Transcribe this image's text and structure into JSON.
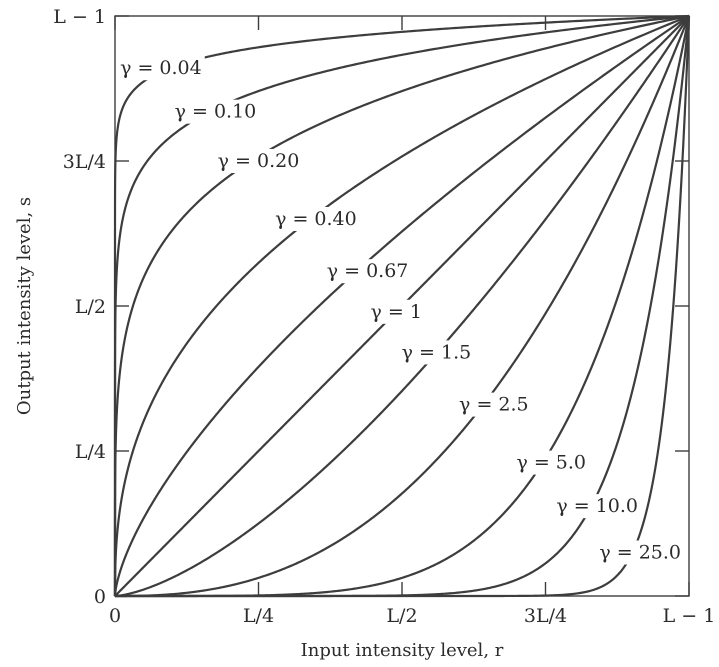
{
  "chart_data": {
    "type": "line",
    "title": "",
    "xlabel": "Input intensity level, r",
    "ylabel": "Output intensity level, s",
    "xlim": [
      0,
      1
    ],
    "ylim": [
      0,
      1
    ],
    "x_ticks": [
      {
        "value": 0,
        "label": "0"
      },
      {
        "value": 0.25,
        "label": "L/4"
      },
      {
        "value": 0.5,
        "label": "L/2"
      },
      {
        "value": 0.75,
        "label": "3L/4"
      },
      {
        "value": 1,
        "label": "L − 1"
      }
    ],
    "y_ticks": [
      {
        "value": 0,
        "label": "0"
      },
      {
        "value": 0.25,
        "label": "L/4"
      },
      {
        "value": 0.5,
        "label": "L/2"
      },
      {
        "value": 0.75,
        "label": "3L/4"
      },
      {
        "value": 1,
        "label": "L − 1"
      }
    ],
    "grid": false,
    "function": "s = c r^gamma",
    "series": [
      {
        "gamma": 0.04,
        "label": "γ = 0.04",
        "label_at": [
          0.08,
          0.91
        ]
      },
      {
        "gamma": 0.1,
        "label": "γ = 0.10",
        "label_at": [
          0.175,
          0.835
        ]
      },
      {
        "gamma": 0.2,
        "label": "γ = 0.20",
        "label_at": [
          0.25,
          0.75
        ]
      },
      {
        "gamma": 0.4,
        "label": "γ = 0.40",
        "label_at": [
          0.35,
          0.65
        ]
      },
      {
        "gamma": 0.67,
        "label": "γ = 0.67",
        "label_at": [
          0.44,
          0.56
        ]
      },
      {
        "gamma": 1.0,
        "label": "γ = 1",
        "label_at": [
          0.49,
          0.49
        ]
      },
      {
        "gamma": 1.5,
        "label": "γ = 1.5",
        "label_at": [
          0.56,
          0.42
        ]
      },
      {
        "gamma": 2.5,
        "label": "γ = 2.5",
        "label_at": [
          0.66,
          0.33
        ]
      },
      {
        "gamma": 5.0,
        "label": "γ = 5.0",
        "label_at": [
          0.76,
          0.23
        ]
      },
      {
        "gamma": 10.0,
        "label": "γ = 10.0",
        "label_at": [
          0.84,
          0.155
        ]
      },
      {
        "gamma": 25.0,
        "label": "γ = 25.0",
        "label_at": [
          0.915,
          0.075
        ]
      }
    ]
  }
}
